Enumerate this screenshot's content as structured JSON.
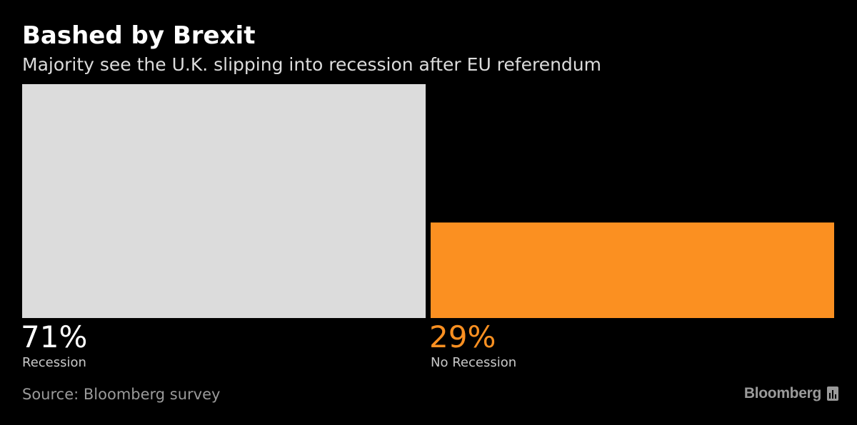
{
  "chart_data": {
    "type": "bar",
    "title": "Bashed by Brexit",
    "subtitle": "Majority see the U.K. slipping into recession after EU referendum",
    "categories": [
      "Recession",
      "No Recession"
    ],
    "values": [
      71,
      29
    ],
    "value_labels": [
      "71%",
      "29%"
    ],
    "unit": "%",
    "ylim": [
      0,
      71
    ],
    "colors": [
      "#dcdcdc",
      "#fb9021"
    ],
    "label_colors": [
      "#ffffff",
      "#fb9021"
    ],
    "source": "Source: Bloomberg survey",
    "grid": false,
    "legend": "none"
  },
  "branding": {
    "logo_text": "Bloomberg",
    "logo_icon": "bloomberg-bar-icon"
  },
  "background": "#000000"
}
